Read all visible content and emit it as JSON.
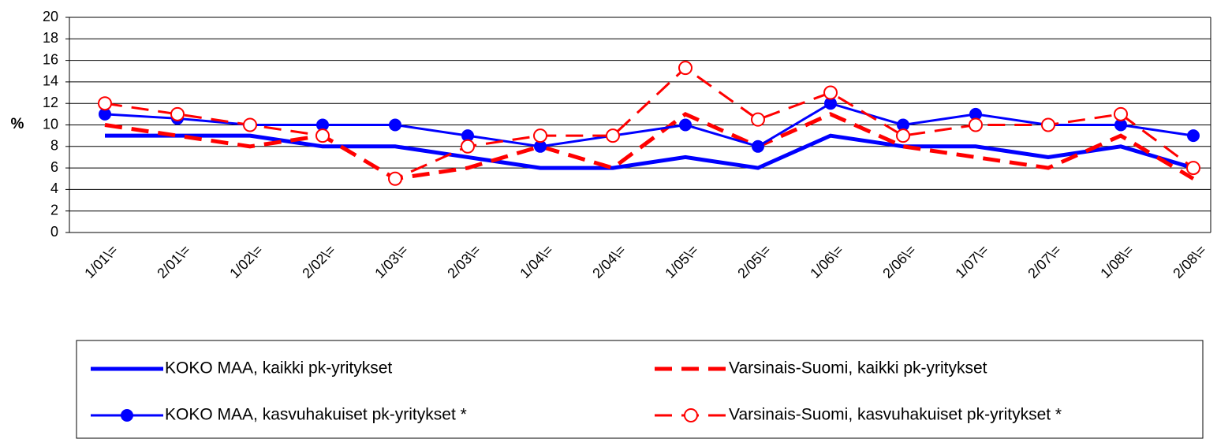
{
  "chart_data": {
    "type": "line",
    "y_label": "%",
    "categories": [
      "1/01\\=",
      "2/01\\=",
      "1/02\\=",
      "2/02\\=",
      "1/03\\=",
      "2/03\\=",
      "1/04\\=",
      "2/04\\=",
      "1/05\\=",
      "2/05\\=",
      "1/06\\=",
      "2/06\\=",
      "1/07\\=",
      "2/07\\=",
      "1/08\\=",
      "2/08\\="
    ],
    "series": [
      {
        "name": "KOKO MAA, kaikki pk-yritykset",
        "color": "#0000ff",
        "line_style": "solid",
        "marker": "none",
        "values": [
          9,
          9,
          9,
          8,
          8,
          7,
          6,
          6,
          7,
          6,
          9,
          8,
          8,
          7,
          8,
          6
        ]
      },
      {
        "name": "Varsinais-Suomi, kaikki pk-yritykset",
        "color": "#ff0000",
        "line_style": "dashed",
        "marker": "none",
        "values": [
          10,
          9,
          8,
          9,
          5,
          6,
          8,
          6,
          11,
          8,
          11,
          8,
          7,
          6,
          9,
          5
        ]
      },
      {
        "name": "KOKO MAA, kasvuhakuiset pk-yritykset *",
        "color": "#0000ff",
        "line_style": "solid",
        "marker": "filled-circle",
        "values": [
          11,
          10.6,
          10,
          10,
          10,
          9,
          8,
          9,
          10,
          8,
          12,
          10,
          11,
          10,
          10,
          9
        ]
      },
      {
        "name": "Varsinais-Suomi, kasvuhakuiset pk-yritykset *",
        "color": "#ff0000",
        "line_style": "dashed",
        "marker": "open-circle",
        "values": [
          12,
          11,
          10,
          9,
          5,
          8,
          9,
          9,
          15.3,
          10.5,
          13,
          9,
          10,
          10,
          11,
          6
        ]
      }
    ],
    "ylim": [
      0,
      20
    ],
    "yticks": [
      0,
      2,
      4,
      6,
      8,
      10,
      12,
      14,
      16,
      18,
      20
    ],
    "grid": true,
    "legend": "bottom"
  }
}
